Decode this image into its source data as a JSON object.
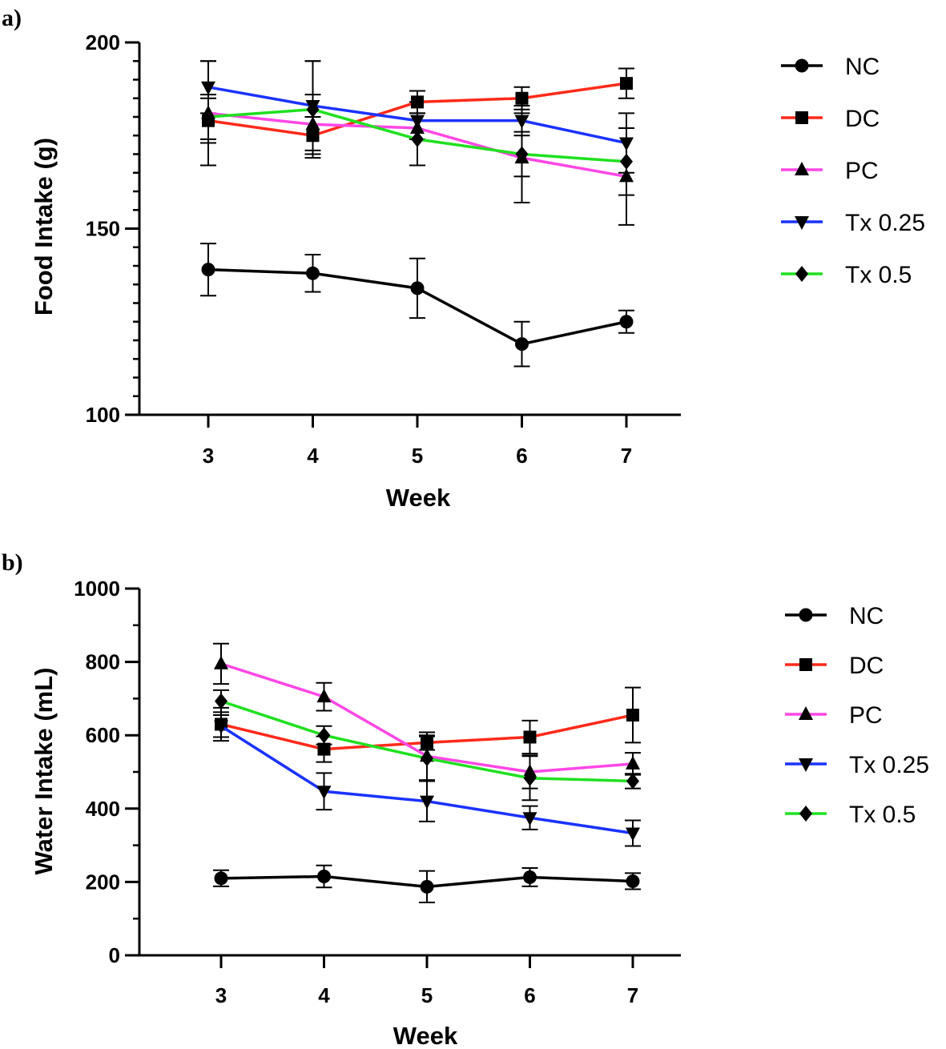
{
  "chart_data": [
    {
      "panel_label": "a)",
      "type": "line",
      "xlabel": "Week",
      "ylabel": "Food Intake (g)",
      "x": [
        3,
        4,
        5,
        6,
        7
      ],
      "xticks": [
        "3",
        "4",
        "5",
        "6",
        "7"
      ],
      "ylim": [
        100,
        200
      ],
      "yticks": [
        "100",
        "150",
        "200"
      ],
      "ytick_values": [
        100,
        150,
        200
      ],
      "minor_step": 5,
      "legend_position": "right",
      "series": [
        {
          "name": "NC",
          "color": "#000000",
          "marker": "circle",
          "values": [
            139,
            138,
            134,
            119,
            125
          ],
          "errors": [
            7,
            5,
            8,
            6,
            3
          ]
        },
        {
          "name": "DC",
          "color": "#ff2a1a",
          "marker": "square",
          "values": [
            179,
            175,
            184,
            185,
            189
          ],
          "errors": [
            6,
            5,
            3,
            3,
            4
          ]
        },
        {
          "name": "PC",
          "color": "#ff47e5",
          "marker": "triangle-up",
          "values": [
            181,
            178,
            177,
            169,
            164
          ],
          "errors": [
            14,
            8,
            10,
            12,
            13
          ]
        },
        {
          "name": "Tx 0.25",
          "color": "#1a33ff",
          "marker": "triangle-down",
          "values": [
            188,
            183,
            179,
            179,
            173
          ],
          "errors": [
            7,
            12,
            5,
            4,
            8
          ]
        },
        {
          "name": "Tx 0.5",
          "color": "#20e020",
          "marker": "diamond",
          "values": [
            180,
            182,
            174,
            170,
            168
          ],
          "errors": [
            6,
            13,
            7,
            6,
            9
          ]
        }
      ]
    },
    {
      "panel_label": "b)",
      "type": "line",
      "xlabel": "Week",
      "ylabel": "Water Intake (mL)",
      "x": [
        3,
        4,
        5,
        6,
        7
      ],
      "xticks": [
        "3",
        "4",
        "5",
        "6",
        "7"
      ],
      "ylim": [
        0,
        1000
      ],
      "yticks": [
        "0",
        "200",
        "400",
        "600",
        "800",
        "1000"
      ],
      "ytick_values": [
        0,
        200,
        400,
        600,
        800,
        1000
      ],
      "minor_step": 100,
      "legend_position": "right",
      "series": [
        {
          "name": "NC",
          "color": "#000000",
          "marker": "circle",
          "values": [
            210,
            215,
            187,
            213,
            202
          ],
          "errors": [
            22,
            30,
            43,
            25,
            22
          ]
        },
        {
          "name": "DC",
          "color": "#ff2a1a",
          "marker": "square",
          "values": [
            630,
            562,
            580,
            595,
            655
          ],
          "errors": [
            45,
            35,
            20,
            45,
            75
          ]
        },
        {
          "name": "PC",
          "color": "#ff47e5",
          "marker": "triangle-up",
          "values": [
            795,
            705,
            543,
            500,
            522
          ],
          "errors": [
            55,
            38,
            65,
            45,
            30
          ]
        },
        {
          "name": "Tx 0.25",
          "color": "#1a33ff",
          "marker": "triangle-down",
          "values": [
            625,
            447,
            420,
            375,
            333
          ],
          "errors": [
            30,
            50,
            55,
            32,
            35
          ]
        },
        {
          "name": "Tx 0.5",
          "color": "#20e020",
          "marker": "diamond",
          "values": [
            693,
            600,
            537,
            483,
            475
          ],
          "errors": [
            30,
            25,
            60,
            60,
            20
          ]
        }
      ]
    }
  ]
}
